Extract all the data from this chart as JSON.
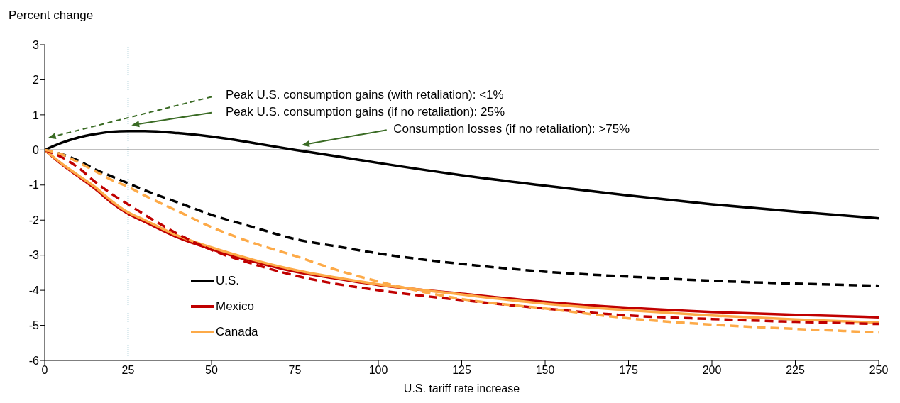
{
  "chart_data": {
    "type": "line",
    "ylabel": "Percent change",
    "xlabel": "U.S. tariff rate increase",
    "x": [
      0,
      5,
      10,
      15,
      20,
      25,
      30,
      40,
      50,
      62.5,
      75,
      87.5,
      100,
      125,
      150,
      175,
      200,
      225,
      250
    ],
    "series": [
      {
        "name": "U.S.",
        "color": "#000000",
        "line_style": "solid",
        "values": [
          0,
          0.2,
          0.35,
          0.45,
          0.52,
          0.54,
          0.54,
          0.48,
          0.38,
          0.2,
          0,
          -0.18,
          -0.37,
          -0.72,
          -1.02,
          -1.3,
          -1.55,
          -1.76,
          -1.95
        ]
      },
      {
        "name": "Mexico",
        "color": "#c00000",
        "line_style": "solid",
        "values": [
          0,
          -0.4,
          -0.75,
          -1.1,
          -1.5,
          -1.82,
          -2.05,
          -2.5,
          -2.83,
          -3.18,
          -3.47,
          -3.67,
          -3.85,
          -4.1,
          -4.33,
          -4.5,
          -4.62,
          -4.7,
          -4.77
        ]
      },
      {
        "name": "Canada",
        "color": "#fdaa48",
        "line_style": "solid",
        "values": [
          0,
          -0.38,
          -0.72,
          -1.05,
          -1.45,
          -1.78,
          -2.0,
          -2.45,
          -2.78,
          -3.13,
          -3.42,
          -3.64,
          -3.83,
          -4.12,
          -4.38,
          -4.57,
          -4.72,
          -4.83,
          -4.92
        ]
      },
      {
        "color": "#000000",
        "line_style": "dashed",
        "values": [
          0,
          -0.12,
          -0.3,
          -0.55,
          -0.75,
          -0.95,
          -1.15,
          -1.5,
          -1.85,
          -2.2,
          -2.54,
          -2.75,
          -2.95,
          -3.25,
          -3.47,
          -3.61,
          -3.73,
          -3.81,
          -3.87
        ]
      },
      {
        "color": "#c00000",
        "line_style": "dashed",
        "values": [
          0,
          -0.2,
          -0.5,
          -0.9,
          -1.25,
          -1.55,
          -1.85,
          -2.4,
          -2.85,
          -3.25,
          -3.58,
          -3.82,
          -4.0,
          -4.28,
          -4.52,
          -4.72,
          -4.82,
          -4.9,
          -4.96
        ]
      },
      {
        "color": "#fdaa48",
        "line_style": "dashed",
        "values": [
          0,
          -0.12,
          -0.35,
          -0.6,
          -0.85,
          -1.05,
          -1.3,
          -1.75,
          -2.2,
          -2.65,
          -3.02,
          -3.42,
          -3.75,
          -4.25,
          -4.52,
          -4.8,
          -4.98,
          -5.1,
          -5.2
        ]
      }
    ],
    "xlim": [
      0,
      250
    ],
    "xticks": [
      0,
      25,
      50,
      75,
      100,
      125,
      150,
      175,
      200,
      225,
      250
    ],
    "ylim": [
      -6,
      3
    ],
    "yticks": [
      -6,
      -5,
      -4,
      -3,
      -2,
      -1,
      0,
      1,
      2,
      3
    ],
    "legend": "bottom left",
    "marker": "none",
    "ref_lines": [
      {
        "axis": "x",
        "value": 25,
        "color": "#31859c",
        "line_style": "dotted"
      },
      {
        "axis": "y",
        "value": 0,
        "color": "#000000",
        "line_style": "solid"
      }
    ],
    "annotations": [
      "Peak U.S. consumption gains (with retaliation): <1%",
      "Peak U.S. consumption gains (if no retaliation): 25%",
      "Consumption losses (if no retaliation): >75%"
    ]
  }
}
